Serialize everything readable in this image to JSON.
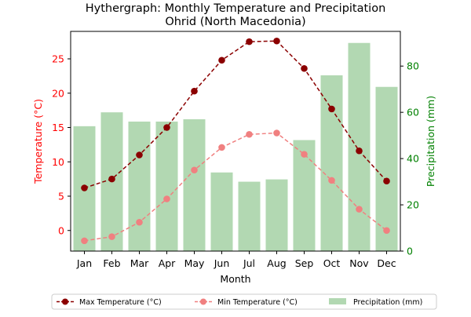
{
  "chart_data": {
    "type": "bar",
    "title_line1": "Hythergraph: Monthly Temperature and Precipitation",
    "title_line2": "Ohrid (North Macedonia)",
    "xlabel": "Month",
    "ylabel_left": "Temperature (°C)",
    "ylabel_right": "Precipitation (mm)",
    "categories": [
      "Jan",
      "Feb",
      "Mar",
      "Apr",
      "May",
      "Jun",
      "Jul",
      "Aug",
      "Sep",
      "Oct",
      "Nov",
      "Dec"
    ],
    "temp_ylim": [
      -3,
      29
    ],
    "temp_ticks": [
      0,
      5,
      10,
      15,
      20,
      25
    ],
    "precip_ylim": [
      0,
      95
    ],
    "precip_ticks": [
      0,
      20,
      40,
      60,
      80
    ],
    "series": [
      {
        "name": "Max Temperature (°C)",
        "kind": "line",
        "axis": "left",
        "color": "#8b0000",
        "values": [
          6.2,
          7.5,
          11.0,
          15.0,
          20.3,
          24.8,
          27.5,
          27.6,
          23.6,
          17.7,
          11.6,
          7.2
        ]
      },
      {
        "name": "Min Temperature (°C)",
        "kind": "line",
        "axis": "left",
        "color": "#f08080",
        "values": [
          -1.5,
          -0.9,
          1.2,
          4.6,
          8.8,
          12.1,
          14.0,
          14.2,
          11.1,
          7.3,
          3.1,
          0.0
        ]
      },
      {
        "name": "Precipitation (mm)",
        "kind": "bar",
        "axis": "right",
        "color": "#b2d8b2",
        "values": [
          54,
          60,
          56,
          56,
          57,
          34,
          30,
          31,
          48,
          76,
          90,
          71
        ]
      }
    ],
    "legend_position": "bottom",
    "grid": false,
    "left_axis_color": "#ff0000",
    "right_axis_color": "#008000"
  }
}
